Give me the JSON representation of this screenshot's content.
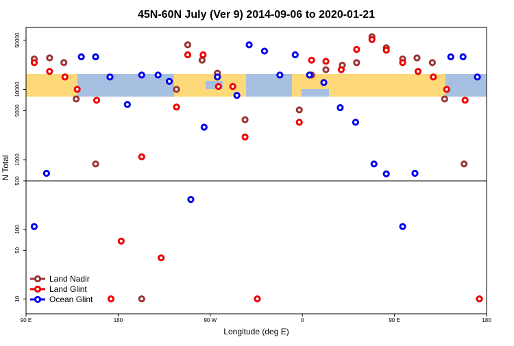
{
  "chart_data": {
    "type": "scatter",
    "title": "45N-60N July (Ver 9)   2014-09-06 to 2020-01-21",
    "x_label": "Longitude (deg E)",
    "y_label": "N Total",
    "xlim": [
      90,
      540
    ],
    "xticks": [
      {
        "value": 90,
        "label": "90 E"
      },
      180,
      {
        "value": 270,
        "label": "90 W"
      },
      {
        "value": 360,
        "label": "0"
      },
      {
        "value": 450,
        "label": "90 E"
      },
      {
        "value": 540,
        "label": "180"
      }
    ],
    "log_scale": true,
    "legend": "bottom-left",
    "panels": [
      {
        "ylim": [
          500,
          76000
        ],
        "yticks": [
          500,
          1000,
          5000,
          10000,
          50000
        ]
      },
      {
        "ylim": [
          6.1,
          500
        ],
        "yticks": [
          10,
          50,
          100
        ]
      }
    ],
    "series": [
      {
        "name": "Land Nadir",
        "color": "#993333",
        "x": [
          98,
          113,
          127,
          139,
          158,
          203,
          237,
          248,
          262,
          277,
          304,
          357,
          369,
          383,
          399,
          413,
          428,
          442,
          458,
          472,
          487,
          499,
          518
        ],
        "values": [
          27000,
          28000,
          24000,
          7300,
          870,
          10,
          10000,
          43000,
          26000,
          17000,
          3700,
          5100,
          16000,
          19000,
          22000,
          24000,
          56000,
          39000,
          27000,
          28000,
          24000,
          7300,
          870
        ]
      },
      {
        "name": "Land Glint",
        "color": "#ee0000",
        "x": [
          98,
          113,
          128,
          140,
          159,
          173,
          183,
          203,
          222,
          237,
          248,
          263,
          278,
          292,
          304,
          316,
          357,
          369,
          383,
          398,
          413,
          428,
          442,
          458,
          473,
          488,
          501,
          519,
          533
        ],
        "values": [
          24000,
          18000,
          15000,
          10000,
          7000,
          10,
          68,
          1100,
          39,
          5600,
          31000,
          31000,
          11000,
          11000,
          2100,
          10,
          3400,
          26000,
          25000,
          19000,
          37000,
          51000,
          36000,
          24000,
          18000,
          15000,
          10000,
          7000,
          10
        ]
      },
      {
        "name": "Ocean Glint",
        "color": "#0000ee",
        "x": [
          98,
          110,
          144,
          158,
          172,
          189,
          203,
          219,
          230,
          251,
          264,
          277,
          296,
          308,
          323,
          338,
          353,
          367,
          381,
          397,
          412,
          430,
          442,
          458,
          470,
          505,
          517,
          531
        ],
        "values": [
          110,
          640,
          29000,
          29000,
          15000,
          6100,
          16000,
          16000,
          13000,
          270,
          2900,
          15000,
          8200,
          43000,
          35000,
          16000,
          31000,
          16000,
          12500,
          5500,
          3400,
          870,
          630,
          110,
          640,
          29000,
          29000,
          15000
        ]
      }
    ]
  }
}
